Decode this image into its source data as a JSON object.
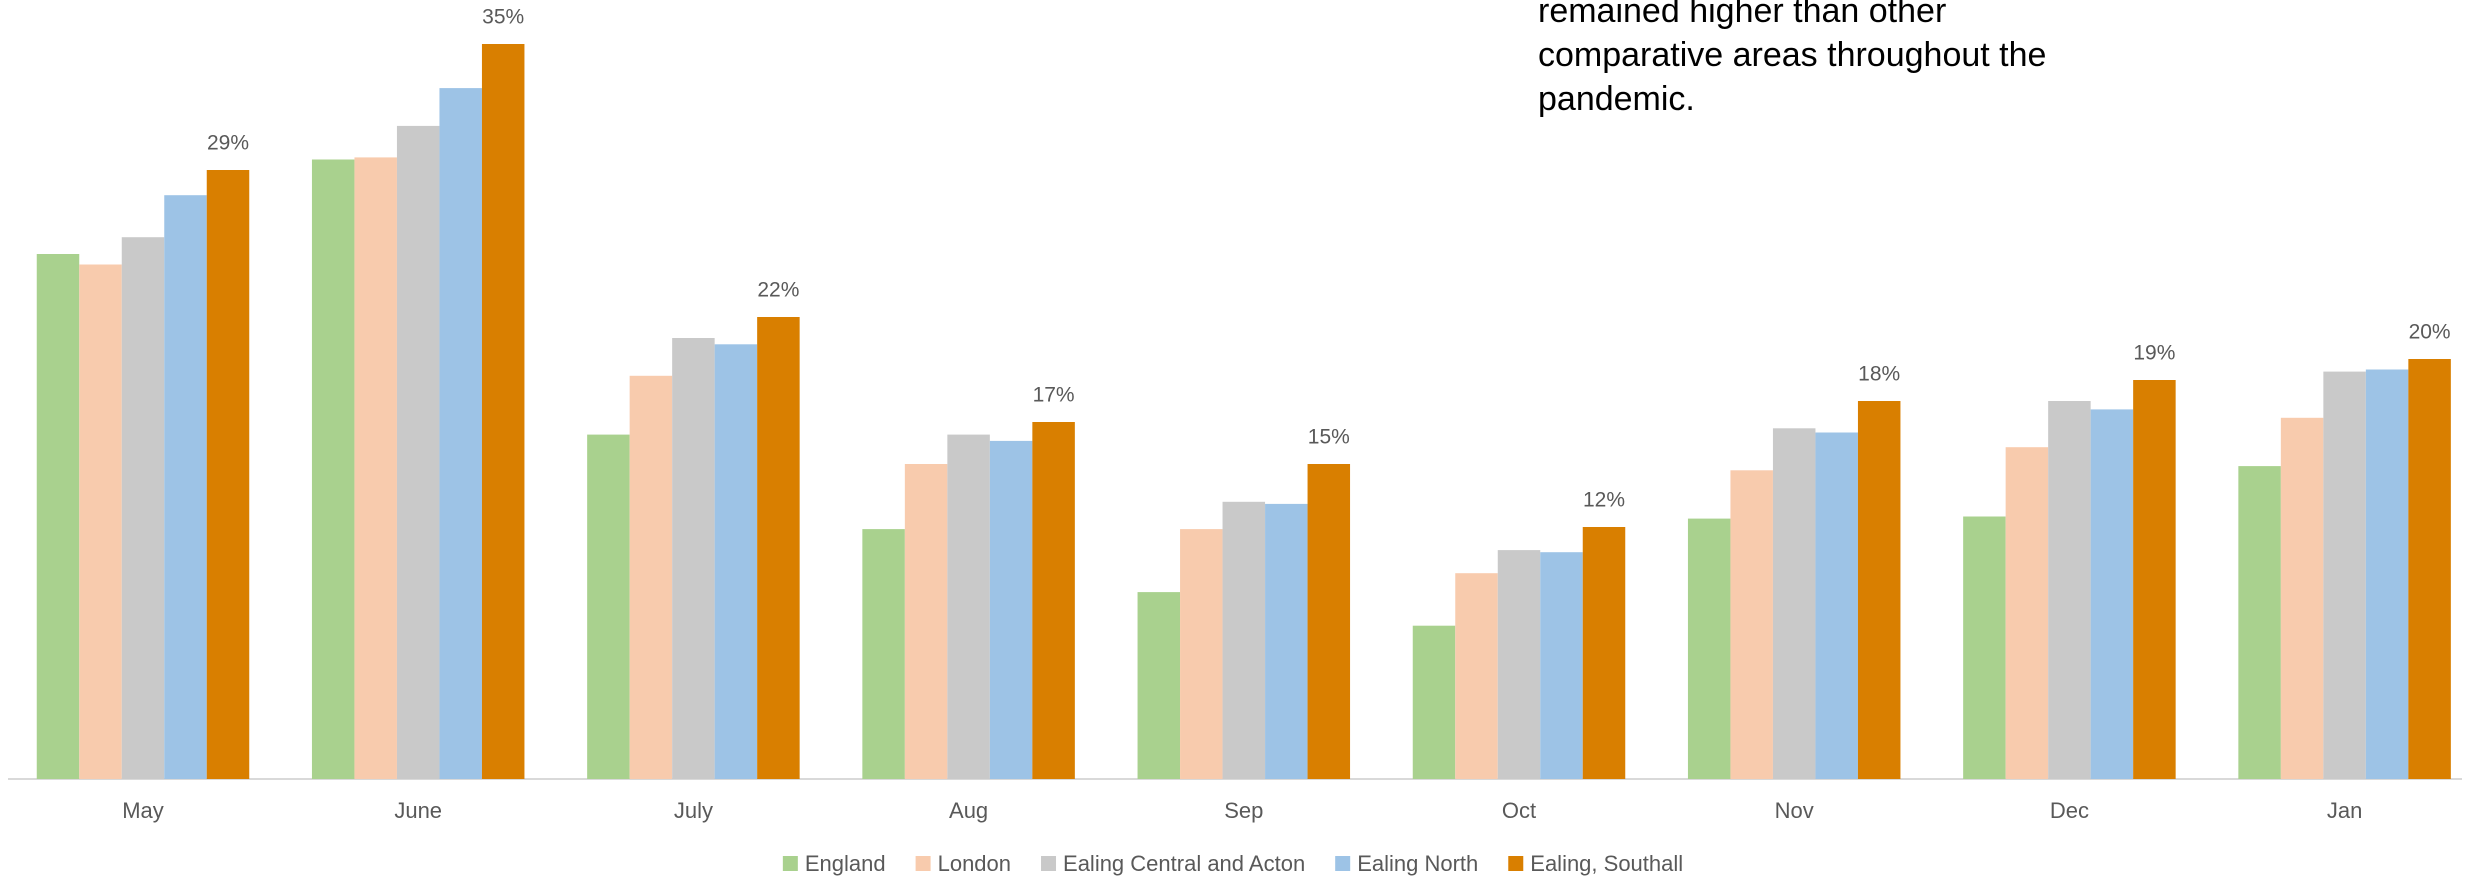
{
  "chart_data": {
    "type": "bar",
    "annotation": [
      "remained higher than other",
      "comparative areas throughout the",
      "pandemic."
    ],
    "categories": [
      "May",
      "June",
      "July",
      "Aug",
      "Sep",
      "Oct",
      "Nov",
      "Dec",
      "Jan"
    ],
    "ylim": [
      0,
      35
    ],
    "series": [
      {
        "name": "England",
        "color": "#a9d18e",
        "values": [
          25.0,
          29.5,
          16.4,
          11.9,
          8.9,
          7.3,
          12.4,
          12.5,
          14.9
        ]
      },
      {
        "name": "London",
        "color": "#f8cbad",
        "values": [
          24.5,
          29.6,
          19.2,
          15.0,
          11.9,
          9.8,
          14.7,
          15.8,
          17.2
        ]
      },
      {
        "name": "Ealing Central and Acton",
        "color": "#c9c9c9",
        "values": [
          25.8,
          31.1,
          21.0,
          16.4,
          13.2,
          10.9,
          16.7,
          18.0,
          19.4
        ]
      },
      {
        "name": "Ealing North",
        "color": "#9dc3e6",
        "values": [
          27.8,
          32.9,
          20.7,
          16.1,
          13.1,
          10.8,
          16.5,
          17.6,
          19.5
        ]
      },
      {
        "name": "Ealing, Southall",
        "color": "#d97f00",
        "values": [
          29,
          35,
          22,
          17,
          15,
          12,
          18,
          19,
          20
        ],
        "value_labels": [
          "29%",
          "35%",
          "22%",
          "17%",
          "15%",
          "12%",
          "18%",
          "19%",
          "20%"
        ]
      }
    ]
  }
}
